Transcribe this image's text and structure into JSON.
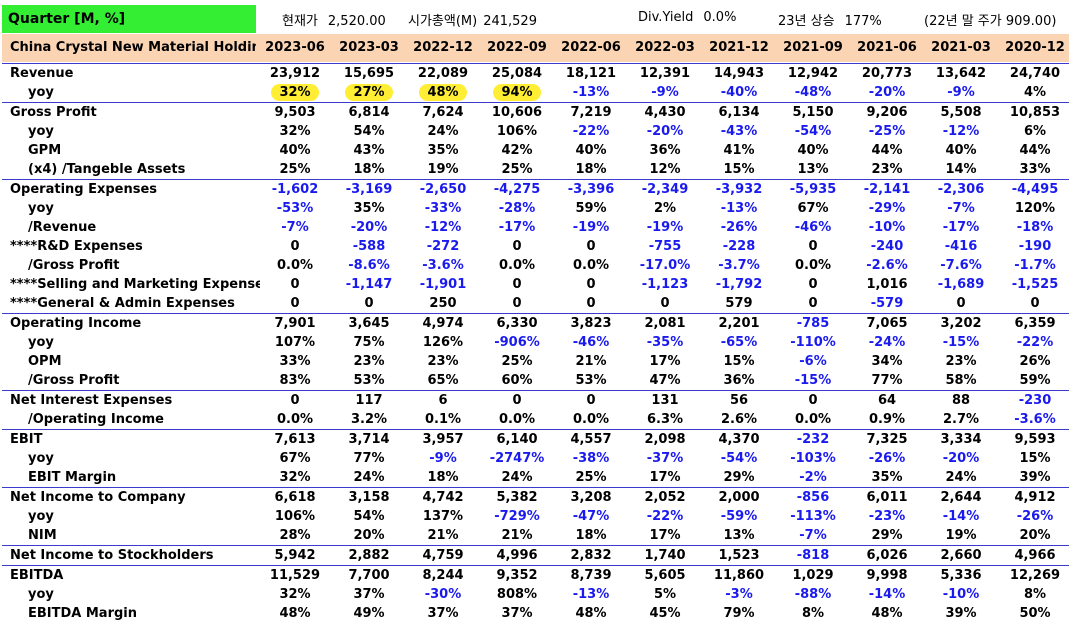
{
  "top": {
    "title": "Quarter [M, %]",
    "price_label": "현재가",
    "price_value": "2,520.00",
    "mcap_label": "시가총액(M)",
    "mcap_value": "241,529",
    "divyield_label": "Div.Yield",
    "divyield_value": "0.0%",
    "rise_label": "23년 상승",
    "rise_value": "177%",
    "yearend_text": "(22년 말 주가 909.00)"
  },
  "colors": {
    "title_bg": "#33ee33",
    "header_bg": "#fbd4b4",
    "negative": "#1a1aee",
    "highlight": "#ffee33",
    "divider": "#3b3bcf"
  },
  "company": "China Crystal New Material Holdings Co Ltd",
  "quarters": [
    "2023-06",
    "2023-03",
    "2022-12",
    "2022-09",
    "2022-06",
    "2022-03",
    "2021-12",
    "2021-09",
    "2021-06",
    "2021-03",
    "2020-12"
  ],
  "rows": [
    {
      "label": "Revenue",
      "level": 0,
      "group": true,
      "values": [
        "23,912",
        "15,695",
        "22,089",
        "25,084",
        "18,121",
        "12,391",
        "14,943",
        "12,942",
        "20,773",
        "13,642",
        "24,740"
      ]
    },
    {
      "label": "yoy",
      "level": 1,
      "highlight": [
        0,
        1,
        2,
        3
      ],
      "values": [
        "32%",
        "27%",
        "48%",
        "94%",
        "-13%",
        "-9%",
        "-40%",
        "-48%",
        "-20%",
        "-9%",
        "4%"
      ]
    },
    {
      "label": "Gross Profit",
      "level": 0,
      "group": true,
      "values": [
        "9,503",
        "6,814",
        "7,624",
        "10,606",
        "7,219",
        "4,430",
        "6,134",
        "5,150",
        "9,206",
        "5,508",
        "10,853"
      ]
    },
    {
      "label": "yoy",
      "level": 1,
      "values": [
        "32%",
        "54%",
        "24%",
        "106%",
        "-22%",
        "-20%",
        "-43%",
        "-54%",
        "-25%",
        "-12%",
        "6%"
      ]
    },
    {
      "label": "GPM",
      "level": 1,
      "values": [
        "40%",
        "43%",
        "35%",
        "42%",
        "40%",
        "36%",
        "41%",
        "40%",
        "44%",
        "40%",
        "44%"
      ]
    },
    {
      "label": "(x4) /Tangeble Assets",
      "level": 1,
      "values": [
        "25%",
        "18%",
        "19%",
        "25%",
        "18%",
        "12%",
        "15%",
        "13%",
        "23%",
        "14%",
        "33%"
      ]
    },
    {
      "label": "Operating Expenses",
      "level": 0,
      "group": true,
      "values": [
        "-1,602",
        "-3,169",
        "-2,650",
        "-4,275",
        "-3,396",
        "-2,349",
        "-3,932",
        "-5,935",
        "-2,141",
        "-2,306",
        "-4,495"
      ]
    },
    {
      "label": "yoy",
      "level": 1,
      "values": [
        "-53%",
        "35%",
        "-33%",
        "-28%",
        "59%",
        "2%",
        "-13%",
        "67%",
        "-29%",
        "-7%",
        "120%"
      ]
    },
    {
      "label": "/Revenue",
      "level": 1,
      "values": [
        "-7%",
        "-20%",
        "-12%",
        "-17%",
        "-19%",
        "-19%",
        "-26%",
        "-46%",
        "-10%",
        "-17%",
        "-18%"
      ]
    },
    {
      "label": "****R&D Expenses",
      "level": 2,
      "values": [
        "0",
        "-588",
        "-272",
        "0",
        "0",
        "-755",
        "-228",
        "0",
        "-240",
        "-416",
        "-190"
      ]
    },
    {
      "label": "/Gross Profit",
      "level": 1,
      "values": [
        "0.0%",
        "-8.6%",
        "-3.6%",
        "0.0%",
        "0.0%",
        "-17.0%",
        "-3.7%",
        "0.0%",
        "-2.6%",
        "-7.6%",
        "-1.7%"
      ]
    },
    {
      "label": "****Selling and Marketing Expense",
      "level": 2,
      "values": [
        "0",
        "-1,147",
        "-1,901",
        "0",
        "0",
        "-1,123",
        "-1,792",
        "0",
        "1,016",
        "-1,689",
        "-1,525"
      ]
    },
    {
      "label": "****General & Admin Expenses",
      "level": 2,
      "values": [
        "0",
        "0",
        "250",
        "0",
        "0",
        "0",
        "579",
        "0",
        "-579",
        "0",
        "0"
      ]
    },
    {
      "label": "Operating Income",
      "level": 0,
      "group": true,
      "values": [
        "7,901",
        "3,645",
        "4,974",
        "6,330",
        "3,823",
        "2,081",
        "2,201",
        "-785",
        "7,065",
        "3,202",
        "6,359"
      ]
    },
    {
      "label": "yoy",
      "level": 1,
      "values": [
        "107%",
        "75%",
        "126%",
        "-906%",
        "-46%",
        "-35%",
        "-65%",
        "-110%",
        "-24%",
        "-15%",
        "-22%"
      ]
    },
    {
      "label": "OPM",
      "level": 1,
      "values": [
        "33%",
        "23%",
        "23%",
        "25%",
        "21%",
        "17%",
        "15%",
        "-6%",
        "34%",
        "23%",
        "26%"
      ]
    },
    {
      "label": "/Gross Profit",
      "level": 1,
      "values": [
        "83%",
        "53%",
        "65%",
        "60%",
        "53%",
        "47%",
        "36%",
        "-15%",
        "77%",
        "58%",
        "59%"
      ]
    },
    {
      "label": "Net Interest Expenses",
      "level": 0,
      "group": true,
      "values": [
        "0",
        "117",
        "6",
        "0",
        "0",
        "131",
        "56",
        "0",
        "64",
        "88",
        "-230"
      ]
    },
    {
      "label": "/Operating Income",
      "level": 1,
      "values": [
        "0.0%",
        "3.2%",
        "0.1%",
        "0.0%",
        "0.0%",
        "6.3%",
        "2.6%",
        "0.0%",
        "0.9%",
        "2.7%",
        "-3.6%"
      ]
    },
    {
      "label": "EBIT",
      "level": 0,
      "group": true,
      "values": [
        "7,613",
        "3,714",
        "3,957",
        "6,140",
        "4,557",
        "2,098",
        "4,370",
        "-232",
        "7,325",
        "3,334",
        "9,593"
      ]
    },
    {
      "label": "yoy",
      "level": 1,
      "values": [
        "67%",
        "77%",
        "-9%",
        "-2747%",
        "-38%",
        "-37%",
        "-54%",
        "-103%",
        "-26%",
        "-20%",
        "15%"
      ]
    },
    {
      "label": "EBIT Margin",
      "level": 1,
      "values": [
        "32%",
        "24%",
        "18%",
        "24%",
        "25%",
        "17%",
        "29%",
        "-2%",
        "35%",
        "24%",
        "39%"
      ]
    },
    {
      "label": "Net Income to Company",
      "level": 0,
      "group": true,
      "values": [
        "6,618",
        "3,158",
        "4,742",
        "5,382",
        "3,208",
        "2,052",
        "2,000",
        "-856",
        "6,011",
        "2,644",
        "4,912"
      ]
    },
    {
      "label": "yoy",
      "level": 1,
      "values": [
        "106%",
        "54%",
        "137%",
        "-729%",
        "-47%",
        "-22%",
        "-59%",
        "-113%",
        "-23%",
        "-14%",
        "-26%"
      ]
    },
    {
      "label": "NIM",
      "level": 1,
      "values": [
        "28%",
        "20%",
        "21%",
        "21%",
        "18%",
        "17%",
        "13%",
        "-7%",
        "29%",
        "19%",
        "20%"
      ]
    },
    {
      "label": "Net Income to Stockholders",
      "level": 0,
      "group": true,
      "values": [
        "5,942",
        "2,882",
        "4,759",
        "4,996",
        "2,832",
        "1,740",
        "1,523",
        "-818",
        "6,026",
        "2,660",
        "4,966"
      ]
    },
    {
      "label": "EBITDA",
      "level": 0,
      "group": true,
      "values": [
        "11,529",
        "7,700",
        "8,244",
        "9,352",
        "8,739",
        "5,605",
        "11,860",
        "1,029",
        "9,998",
        "5,336",
        "12,269"
      ]
    },
    {
      "label": "yoy",
      "level": 1,
      "values": [
        "32%",
        "37%",
        "-30%",
        "808%",
        "-13%",
        "5%",
        "-3%",
        "-88%",
        "-14%",
        "-10%",
        "8%"
      ]
    },
    {
      "label": "EBITDA Margin",
      "level": 1,
      "values": [
        "48%",
        "49%",
        "37%",
        "37%",
        "48%",
        "45%",
        "79%",
        "8%",
        "48%",
        "39%",
        "50%"
      ]
    }
  ]
}
